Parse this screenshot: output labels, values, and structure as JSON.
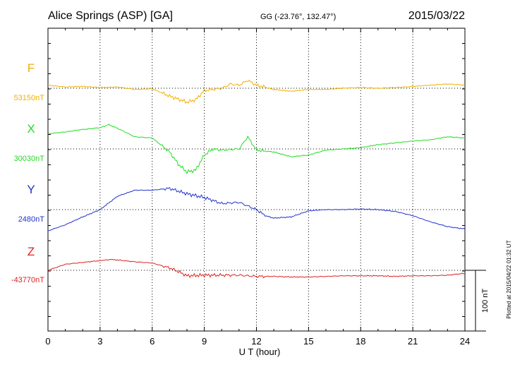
{
  "header": {
    "station": "Alice Springs (ASP)  [GA]",
    "coords": "GG (-23.76°, 132.47°)",
    "date": "2015/03/22"
  },
  "footer": {
    "plotted": "Plotted at 2015/04/22 01:32 UT"
  },
  "scale_label": "100 nT",
  "chart_data": {
    "type": "line",
    "xlabel": "U T (hour)",
    "xlim": [
      0,
      24
    ],
    "xticks": [
      "0",
      "3",
      "6",
      "9",
      "12",
      "15",
      "18",
      "21",
      "24"
    ],
    "grid": true,
    "scale_bar_nT": 100,
    "series": [
      {
        "name": "F",
        "baseline_label": "53150nT",
        "color": "#f0b000",
        "baseline": 53150,
        "points": [
          [
            0,
            53155
          ],
          [
            1,
            53152
          ],
          [
            2,
            53153
          ],
          [
            3,
            53151
          ],
          [
            4,
            53152
          ],
          [
            5,
            53148
          ],
          [
            6,
            53149
          ],
          [
            7,
            53137
          ],
          [
            7.5,
            53132
          ],
          [
            8,
            53127
          ],
          [
            8.5,
            53131
          ],
          [
            9,
            53146
          ],
          [
            10,
            53150
          ],
          [
            10.5,
            53157
          ],
          [
            11,
            53155
          ],
          [
            11.5,
            53163
          ],
          [
            12,
            53155
          ],
          [
            13,
            53148
          ],
          [
            14,
            53145
          ],
          [
            15,
            53148
          ],
          [
            16,
            53148
          ],
          [
            17,
            53150
          ],
          [
            18,
            53151
          ],
          [
            19,
            53150
          ],
          [
            20,
            53151
          ],
          [
            21,
            53153
          ],
          [
            22,
            53155
          ],
          [
            23,
            53157
          ],
          [
            24,
            53155
          ]
        ]
      },
      {
        "name": "X",
        "baseline_label": "30030nT",
        "color": "#22dd22",
        "baseline": 30030,
        "points": [
          [
            0,
            30055
          ],
          [
            1,
            30058
          ],
          [
            2,
            30062
          ],
          [
            3,
            30065
          ],
          [
            3.5,
            30070
          ],
          [
            4,
            30064
          ],
          [
            5,
            30050
          ],
          [
            6,
            30048
          ],
          [
            7,
            30025
          ],
          [
            7.5,
            30005
          ],
          [
            8,
            29992
          ],
          [
            8.5,
            29995
          ],
          [
            9,
            30020
          ],
          [
            9.5,
            30030
          ],
          [
            10,
            30028
          ],
          [
            11,
            30030
          ],
          [
            11.5,
            30050
          ],
          [
            12,
            30028
          ],
          [
            13,
            30025
          ],
          [
            14,
            30017
          ],
          [
            15,
            30020
          ],
          [
            16,
            30028
          ],
          [
            17,
            30030
          ],
          [
            18,
            30032
          ],
          [
            19,
            30037
          ],
          [
            20,
            30040
          ],
          [
            21,
            30043
          ],
          [
            22,
            30045
          ],
          [
            23,
            30050
          ],
          [
            24,
            30048
          ]
        ]
      },
      {
        "name": "Y",
        "baseline_label": "2480nT",
        "color": "#2233cc",
        "baseline": 2480,
        "points": [
          [
            0,
            2445
          ],
          [
            1,
            2455
          ],
          [
            2,
            2468
          ],
          [
            3,
            2480
          ],
          [
            4,
            2502
          ],
          [
            5,
            2512
          ],
          [
            6,
            2512
          ],
          [
            7,
            2515
          ],
          [
            8,
            2506
          ],
          [
            9,
            2500
          ],
          [
            10,
            2490
          ],
          [
            11,
            2492
          ],
          [
            12,
            2480
          ],
          [
            12.5,
            2470
          ],
          [
            13,
            2466
          ],
          [
            14,
            2468
          ],
          [
            15,
            2478
          ],
          [
            16,
            2480
          ],
          [
            17,
            2480
          ],
          [
            18,
            2481
          ],
          [
            19,
            2480
          ],
          [
            20,
            2477
          ],
          [
            21,
            2470
          ],
          [
            22,
            2460
          ],
          [
            23,
            2452
          ],
          [
            24,
            2448
          ]
        ]
      },
      {
        "name": "Z",
        "baseline_label": "-43770nT",
        "color": "#dd2222",
        "baseline": -43770,
        "points": [
          [
            0,
            -43770
          ],
          [
            1,
            -43760
          ],
          [
            2,
            -43757
          ],
          [
            3,
            -43754
          ],
          [
            3.7,
            -43752
          ],
          [
            4,
            -43753
          ],
          [
            5,
            -43756
          ],
          [
            6,
            -43758
          ],
          [
            7,
            -43766
          ],
          [
            7.5,
            -43772
          ],
          [
            8,
            -43779
          ],
          [
            9,
            -43778
          ],
          [
            10,
            -43778
          ],
          [
            11,
            -43778
          ],
          [
            12,
            -43780
          ],
          [
            13,
            -43780
          ],
          [
            14,
            -43781
          ],
          [
            15,
            -43781
          ],
          [
            16,
            -43780
          ],
          [
            17,
            -43779
          ],
          [
            18,
            -43779
          ],
          [
            19,
            -43779
          ],
          [
            20,
            -43780
          ],
          [
            21,
            -43779
          ],
          [
            22,
            -43779
          ],
          [
            23,
            -43778
          ],
          [
            24,
            -43775
          ]
        ]
      }
    ]
  }
}
